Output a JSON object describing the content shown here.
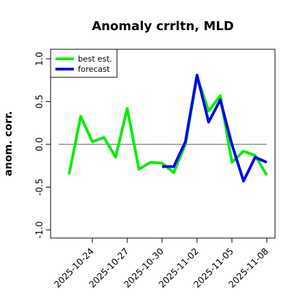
{
  "chart_data": {
    "type": "line",
    "title": "Anomaly crrltn, MLD",
    "xlabel": "",
    "ylabel": "anom. corr.",
    "ylim": [
      -1.0,
      1.0
    ],
    "yticks": [
      "-1.0",
      "-0.5",
      "0.0",
      "0.5",
      "1.0"
    ],
    "ytick_values": [
      -1.0,
      -0.5,
      0.0,
      0.5,
      1.0
    ],
    "xlim": [
      "2025-10-21",
      "2025-11-09"
    ],
    "xticks": [
      "2025-10-24",
      "2025-10-27",
      "2025-10-30",
      "2025-11-02",
      "2025-11-05",
      "2025-11-08"
    ],
    "xtick_colors": [
      "#000000",
      "#000000",
      "#228b22",
      "#000000",
      "#000000",
      "#000000"
    ],
    "reference_line_y": 0.0,
    "legend_position": "top-left",
    "series": [
      {
        "name": "best est.",
        "color": "#00ee00",
        "x": [
          "2025-10-22",
          "2025-10-23",
          "2025-10-24",
          "2025-10-25",
          "2025-10-26",
          "2025-10-27",
          "2025-10-28",
          "2025-10-29",
          "2025-10-30",
          "2025-10-31",
          "2025-11-01",
          "2025-11-02",
          "2025-11-03",
          "2025-11-04",
          "2025-11-05",
          "2025-11-06",
          "2025-11-07",
          "2025-11-08"
        ],
        "values": [
          -0.35,
          0.33,
          0.03,
          0.08,
          -0.15,
          0.42,
          -0.29,
          -0.21,
          -0.22,
          -0.33,
          0.0,
          0.79,
          0.39,
          0.57,
          -0.21,
          -0.08,
          -0.13,
          -0.36
        ]
      },
      {
        "name": "forecast",
        "color": "#0000ee",
        "x": [
          "2025-10-30",
          "2025-10-31",
          "2025-11-01",
          "2025-11-02",
          "2025-11-03",
          "2025-11-04",
          "2025-11-05",
          "2025-11-06",
          "2025-11-07",
          "2025-11-08"
        ],
        "values": [
          -0.26,
          -0.26,
          0.03,
          0.81,
          0.26,
          0.52,
          0.0,
          -0.43,
          -0.15,
          -0.21
        ]
      }
    ]
  }
}
